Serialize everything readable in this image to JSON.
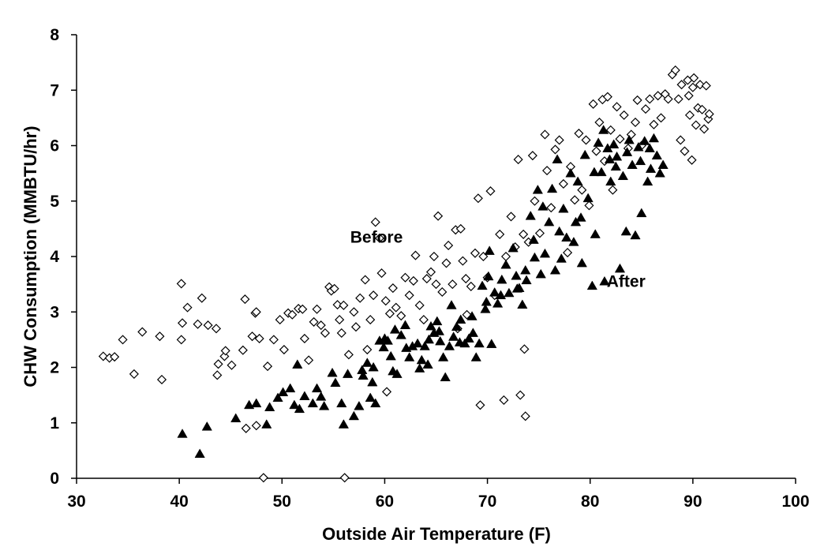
{
  "chart_data": {
    "type": "scatter",
    "title": "",
    "xlabel": "Outside Air Temperature (F)",
    "ylabel": "CHW Consumption (MMBTU/hr)",
    "xlim": [
      30,
      100
    ],
    "ylim": [
      0,
      8
    ],
    "x_ticks": [
      "30",
      "40",
      "50",
      "60",
      "70",
      "80",
      "90",
      "100"
    ],
    "y_ticks": [
      "0",
      "1",
      "2",
      "3",
      "4",
      "5",
      "6",
      "7",
      "8"
    ],
    "grid": false,
    "legend": "none",
    "annotations": [
      {
        "text": "Before",
        "x": 59.2,
        "y": 4.25
      },
      {
        "text": "After",
        "x": 83.5,
        "y": 3.45
      }
    ],
    "series": [
      {
        "marker": "open-diamond",
        "color": "#000000",
        "points": [
          [
            32.6,
            2.2
          ],
          [
            33.2,
            2.17
          ],
          [
            33.7,
            2.19
          ],
          [
            34.5,
            2.5
          ],
          [
            35.6,
            1.88
          ],
          [
            36.4,
            2.64
          ],
          [
            38.1,
            2.56
          ],
          [
            38.3,
            1.78
          ],
          [
            40.2,
            3.51
          ],
          [
            40.3,
            2.8
          ],
          [
            40.2,
            2.5
          ],
          [
            40.8,
            3.08
          ],
          [
            41.8,
            2.78
          ],
          [
            42.2,
            3.25
          ],
          [
            42.8,
            2.76
          ],
          [
            43.6,
            2.7
          ],
          [
            43.7,
            1.86
          ],
          [
            43.8,
            2.06
          ],
          [
            44.4,
            2.2
          ],
          [
            44.5,
            2.3
          ],
          [
            45.1,
            2.04
          ],
          [
            46.2,
            2.31
          ],
          [
            46.4,
            3.23
          ],
          [
            47.1,
            2.56
          ],
          [
            47.4,
            2.98
          ],
          [
            47.5,
            3.0
          ],
          [
            47.8,
            2.52
          ],
          [
            48.6,
            2.02
          ],
          [
            48.2,
            0.01
          ],
          [
            46.5,
            0.9
          ],
          [
            47.5,
            0.95
          ],
          [
            49.2,
            2.5
          ],
          [
            49.8,
            2.86
          ],
          [
            50.2,
            2.32
          ],
          [
            50.6,
            2.98
          ],
          [
            51.0,
            2.95
          ],
          [
            51.6,
            3.06
          ],
          [
            52.0,
            3.05
          ],
          [
            52.2,
            2.52
          ],
          [
            52.6,
            2.13
          ],
          [
            53.1,
            2.82
          ],
          [
            53.4,
            3.05
          ],
          [
            53.8,
            2.76
          ],
          [
            54.2,
            2.62
          ],
          [
            54.6,
            3.45
          ],
          [
            54.8,
            3.38
          ],
          [
            55.1,
            3.42
          ],
          [
            55.4,
            3.13
          ],
          [
            55.6,
            2.86
          ],
          [
            55.8,
            2.62
          ],
          [
            56.0,
            3.12
          ],
          [
            56.1,
            0.01
          ],
          [
            56.5,
            2.23
          ],
          [
            57.0,
            3.0
          ],
          [
            57.2,
            2.73
          ],
          [
            57.6,
            3.25
          ],
          [
            58.1,
            3.58
          ],
          [
            58.3,
            2.32
          ],
          [
            58.6,
            2.86
          ],
          [
            58.9,
            3.3
          ],
          [
            59.1,
            4.62
          ],
          [
            59.5,
            4.33
          ],
          [
            59.7,
            3.7
          ],
          [
            60.1,
            3.2
          ],
          [
            60.2,
            1.56
          ],
          [
            60.5,
            2.97
          ],
          [
            60.8,
            3.43
          ],
          [
            61.1,
            3.08
          ],
          [
            61.6,
            2.93
          ],
          [
            62.0,
            3.62
          ],
          [
            62.4,
            3.3
          ],
          [
            62.8,
            3.56
          ],
          [
            63.0,
            4.02
          ],
          [
            63.4,
            3.12
          ],
          [
            63.8,
            2.86
          ],
          [
            64.1,
            3.6
          ],
          [
            64.5,
            3.72
          ],
          [
            64.8,
            4.0
          ],
          [
            65.2,
            4.73
          ],
          [
            65.6,
            3.36
          ],
          [
            66.0,
            3.88
          ],
          [
            66.2,
            4.2
          ],
          [
            66.6,
            3.5
          ],
          [
            66.9,
            4.48
          ],
          [
            67.1,
            2.7
          ],
          [
            67.4,
            4.5
          ],
          [
            67.6,
            3.92
          ],
          [
            68.0,
            2.95
          ],
          [
            68.4,
            3.46
          ],
          [
            68.8,
            4.06
          ],
          [
            69.1,
            5.05
          ],
          [
            69.3,
            1.32
          ],
          [
            69.6,
            4.0
          ],
          [
            70.0,
            3.62
          ],
          [
            70.3,
            5.18
          ],
          [
            70.7,
            3.3
          ],
          [
            71.2,
            4.4
          ],
          [
            71.6,
            1.41
          ],
          [
            71.8,
            4.0
          ],
          [
            72.3,
            4.72
          ],
          [
            72.7,
            4.17
          ],
          [
            73.0,
            5.75
          ],
          [
            73.2,
            1.5
          ],
          [
            73.5,
            4.4
          ],
          [
            73.6,
            2.33
          ],
          [
            73.7,
            1.12
          ],
          [
            74.0,
            4.26
          ],
          [
            74.4,
            5.82
          ],
          [
            74.6,
            5.0
          ],
          [
            75.1,
            4.42
          ],
          [
            75.6,
            6.2
          ],
          [
            75.8,
            5.55
          ],
          [
            76.2,
            4.88
          ],
          [
            76.6,
            5.93
          ],
          [
            77.0,
            6.1
          ],
          [
            77.4,
            5.31
          ],
          [
            77.8,
            4.07
          ],
          [
            78.1,
            5.62
          ],
          [
            78.5,
            5.02
          ],
          [
            78.9,
            6.22
          ],
          [
            79.2,
            5.2
          ],
          [
            79.6,
            6.1
          ],
          [
            79.9,
            4.92
          ],
          [
            80.3,
            6.75
          ],
          [
            80.6,
            5.9
          ],
          [
            80.9,
            6.42
          ],
          [
            81.2,
            6.83
          ],
          [
            81.4,
            5.72
          ],
          [
            81.7,
            6.88
          ],
          [
            82.0,
            6.28
          ],
          [
            82.2,
            5.2
          ],
          [
            82.6,
            6.7
          ],
          [
            82.9,
            6.12
          ],
          [
            83.3,
            6.55
          ],
          [
            83.7,
            5.95
          ],
          [
            84.0,
            6.2
          ],
          [
            84.4,
            6.42
          ],
          [
            84.6,
            6.82
          ],
          [
            85.0,
            6.0
          ],
          [
            85.4,
            6.66
          ],
          [
            85.8,
            6.84
          ],
          [
            86.2,
            6.38
          ],
          [
            86.6,
            6.9
          ],
          [
            86.9,
            6.5
          ],
          [
            87.3,
            6.93
          ],
          [
            87.6,
            6.84
          ],
          [
            88.0,
            7.28
          ],
          [
            88.3,
            7.36
          ],
          [
            88.6,
            6.84
          ],
          [
            88.9,
            7.1
          ],
          [
            89.2,
            5.9
          ],
          [
            89.5,
            7.18
          ],
          [
            89.7,
            6.55
          ],
          [
            89.9,
            5.74
          ],
          [
            90.1,
            7.22
          ],
          [
            90.3,
            6.37
          ],
          [
            90.5,
            6.68
          ],
          [
            90.7,
            7.1
          ],
          [
            90.9,
            6.65
          ],
          [
            91.1,
            6.3
          ],
          [
            91.3,
            7.08
          ],
          [
            91.5,
            6.48
          ],
          [
            91.6,
            6.57
          ],
          [
            90.0,
            7.05
          ],
          [
            89.6,
            6.9
          ],
          [
            88.8,
            6.1
          ],
          [
            65.0,
            3.5
          ],
          [
            67.9,
            3.6
          ]
        ]
      },
      {
        "marker": "filled-triangle",
        "color": "#000000",
        "points": [
          [
            40.3,
            0.8
          ],
          [
            42.0,
            0.44
          ],
          [
            42.7,
            0.93
          ],
          [
            45.5,
            1.08
          ],
          [
            46.8,
            1.32
          ],
          [
            47.5,
            1.35
          ],
          [
            48.5,
            0.97
          ],
          [
            48.8,
            1.28
          ],
          [
            49.6,
            1.45
          ],
          [
            50.1,
            1.55
          ],
          [
            50.8,
            1.62
          ],
          [
            51.2,
            1.32
          ],
          [
            51.5,
            2.05
          ],
          [
            51.7,
            1.25
          ],
          [
            52.2,
            1.48
          ],
          [
            53.0,
            1.35
          ],
          [
            53.4,
            1.62
          ],
          [
            53.8,
            1.47
          ],
          [
            54.1,
            1.3
          ],
          [
            54.9,
            1.9
          ],
          [
            55.2,
            1.72
          ],
          [
            55.8,
            1.35
          ],
          [
            56.0,
            0.97
          ],
          [
            56.4,
            1.88
          ],
          [
            57.0,
            1.12
          ],
          [
            57.5,
            1.3
          ],
          [
            57.8,
            1.95
          ],
          [
            58.3,
            2.08
          ],
          [
            58.6,
            1.45
          ],
          [
            58.8,
            1.73
          ],
          [
            59.1,
            1.35
          ],
          [
            59.5,
            2.48
          ],
          [
            59.9,
            2.36
          ],
          [
            60.3,
            2.48
          ],
          [
            60.6,
            2.2
          ],
          [
            60.8,
            1.93
          ],
          [
            61.2,
            1.88
          ],
          [
            61.6,
            2.58
          ],
          [
            62.0,
            2.76
          ],
          [
            62.4,
            2.18
          ],
          [
            62.7,
            2.38
          ],
          [
            63.2,
            2.43
          ],
          [
            63.6,
            2.13
          ],
          [
            63.9,
            2.38
          ],
          [
            64.2,
            2.05
          ],
          [
            64.5,
            2.74
          ],
          [
            64.8,
            2.62
          ],
          [
            65.1,
            2.83
          ],
          [
            65.4,
            2.47
          ],
          [
            65.7,
            2.18
          ],
          [
            65.9,
            1.82
          ],
          [
            66.3,
            2.38
          ],
          [
            66.7,
            2.55
          ],
          [
            67.0,
            2.73
          ],
          [
            67.4,
            2.86
          ],
          [
            67.8,
            2.43
          ],
          [
            68.2,
            2.52
          ],
          [
            68.6,
            2.62
          ],
          [
            68.9,
            2.18
          ],
          [
            69.2,
            2.43
          ],
          [
            69.5,
            3.47
          ],
          [
            69.8,
            3.05
          ],
          [
            70.1,
            3.64
          ],
          [
            70.4,
            2.42
          ],
          [
            70.7,
            3.35
          ],
          [
            71.0,
            3.15
          ],
          [
            71.4,
            3.58
          ],
          [
            71.8,
            3.85
          ],
          [
            72.1,
            3.34
          ],
          [
            72.5,
            4.15
          ],
          [
            72.8,
            3.65
          ],
          [
            73.1,
            3.43
          ],
          [
            73.4,
            3.13
          ],
          [
            73.8,
            3.57
          ],
          [
            74.2,
            4.73
          ],
          [
            74.5,
            4.3
          ],
          [
            74.9,
            5.2
          ],
          [
            75.2,
            3.68
          ],
          [
            75.6,
            4.05
          ],
          [
            76.0,
            4.62
          ],
          [
            76.3,
            5.22
          ],
          [
            76.6,
            3.75
          ],
          [
            77.0,
            4.45
          ],
          [
            77.4,
            4.86
          ],
          [
            77.7,
            4.34
          ],
          [
            78.1,
            5.5
          ],
          [
            78.4,
            4.26
          ],
          [
            78.8,
            5.35
          ],
          [
            79.1,
            4.7
          ],
          [
            79.5,
            5.83
          ],
          [
            79.8,
            5.05
          ],
          [
            80.2,
            3.47
          ],
          [
            80.5,
            4.4
          ],
          [
            80.8,
            6.05
          ],
          [
            81.1,
            5.52
          ],
          [
            81.4,
            3.55
          ],
          [
            81.7,
            5.95
          ],
          [
            82.0,
            5.35
          ],
          [
            82.3,
            6.02
          ],
          [
            82.6,
            5.8
          ],
          [
            82.9,
            3.78
          ],
          [
            83.2,
            5.45
          ],
          [
            83.5,
            4.45
          ],
          [
            83.8,
            6.1
          ],
          [
            84.1,
            5.65
          ],
          [
            84.4,
            4.38
          ],
          [
            84.7,
            5.97
          ],
          [
            85.0,
            4.78
          ],
          [
            85.3,
            6.08
          ],
          [
            85.6,
            5.35
          ],
          [
            85.9,
            5.58
          ],
          [
            86.2,
            6.13
          ],
          [
            86.5,
            5.82
          ],
          [
            86.8,
            5.5
          ],
          [
            87.1,
            5.65
          ],
          [
            81.3,
            6.28
          ],
          [
            81.9,
            5.75
          ],
          [
            82.5,
            5.62
          ],
          [
            83.6,
            5.88
          ],
          [
            84.9,
            5.72
          ],
          [
            85.8,
            5.95
          ],
          [
            80.4,
            5.52
          ],
          [
            79.2,
            3.88
          ],
          [
            78.6,
            4.62
          ],
          [
            77.2,
            3.96
          ],
          [
            76.8,
            5.75
          ],
          [
            75.4,
            4.9
          ],
          [
            74.6,
            3.98
          ],
          [
            73.7,
            3.75
          ],
          [
            72.9,
            3.42
          ],
          [
            71.3,
            3.3
          ],
          [
            70.2,
            4.1
          ],
          [
            69.9,
            3.18
          ],
          [
            68.5,
            2.92
          ],
          [
            67.3,
            2.45
          ],
          [
            66.5,
            3.12
          ],
          [
            65.3,
            2.65
          ],
          [
            64.3,
            2.5
          ],
          [
            63.4,
            1.98
          ],
          [
            62.1,
            2.35
          ],
          [
            61.0,
            2.68
          ],
          [
            60.0,
            2.52
          ],
          [
            58.9,
            2.0
          ],
          [
            57.9,
            1.85
          ]
        ]
      }
    ]
  }
}
